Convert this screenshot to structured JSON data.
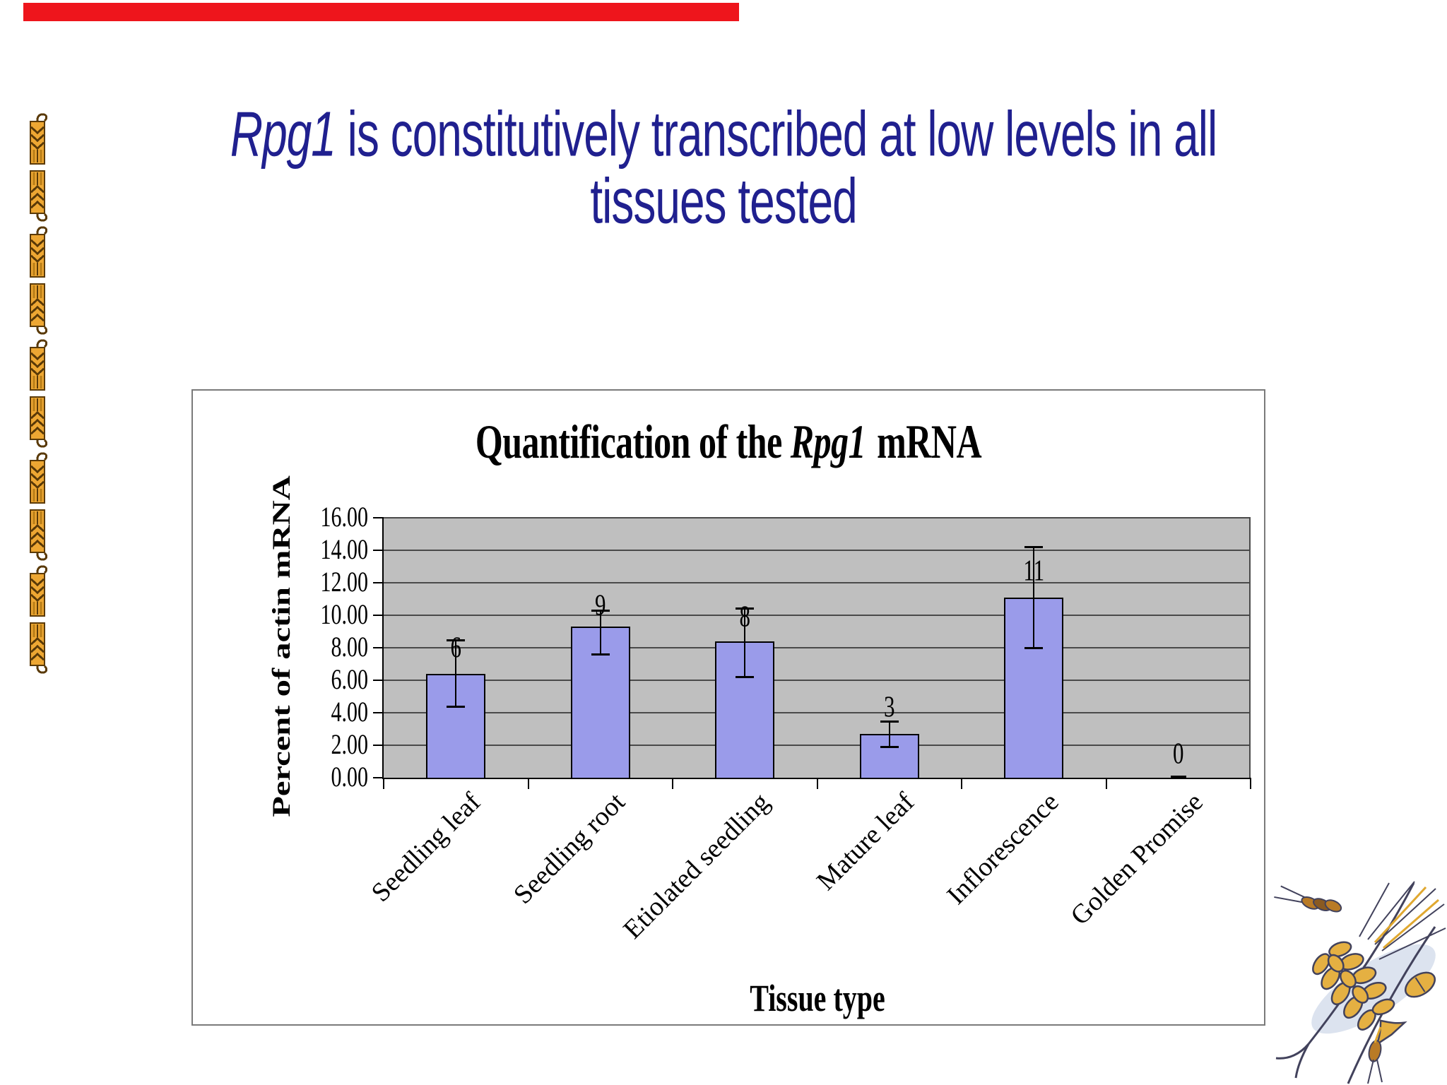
{
  "slide": {
    "title_italic": "Rpg1",
    "title_rest": " is constitutively transcribed at low levels in all",
    "title_line2": "tissues tested",
    "title_color": "#20208f",
    "red_bar_color": "#ee151c"
  },
  "decorations": {
    "top_bar": "red-accent-bar",
    "left_column": "pixel-wheat-spike-column",
    "bottom_right": "hand-drawn-barley-ear",
    "wheat_colors": {
      "body": "#eda733",
      "shade": "#b87e18",
      "outline": "#5a3a08"
    },
    "barley_colors": {
      "ink": "#42425c",
      "kernel": "#e5b042",
      "kernel_dark": "#b97b26",
      "wash": "#b9c8e0"
    }
  },
  "chart_data": {
    "type": "bar",
    "title_prefix": "Quantification of the ",
    "title_italic": "Rpg1",
    "title_suffix": "mRNA",
    "xlabel": "Tissue type",
    "ylabel": "Percent of actin mRNA",
    "categories": [
      "Seedling leaf",
      "Seedling root",
      "Etiolated seedling",
      "Mature leaf",
      "Inflorescence",
      "Golden Promise"
    ],
    "values": [
      6.4,
      9.3,
      8.4,
      2.7,
      11.1,
      0
    ],
    "bar_labels": [
      "6",
      "9",
      "8",
      "3",
      "11",
      "0"
    ],
    "error_low": [
      4.4,
      7.6,
      6.2,
      1.9,
      8.0,
      0.05
    ],
    "error_high": [
      8.5,
      10.3,
      10.45,
      3.5,
      14.2,
      0.1
    ],
    "label_pos": [
      8.0,
      10.6,
      9.9,
      4.35,
      12.75,
      1.5
    ],
    "ylim": [
      0,
      16
    ],
    "ytick_step": 2,
    "ytick_labels": [
      "0.00",
      "2.00",
      "4.00",
      "6.00",
      "8.00",
      "10.00",
      "12.00",
      "14.00",
      "16.00"
    ],
    "grid": true,
    "legend": "none",
    "bar_color": "#9a9bea",
    "bar_border": "#000000",
    "plot_bg": "#bfbfbf",
    "grid_color": "#4a4a4a",
    "axis_color": "#000000",
    "error_color": "#000000"
  }
}
